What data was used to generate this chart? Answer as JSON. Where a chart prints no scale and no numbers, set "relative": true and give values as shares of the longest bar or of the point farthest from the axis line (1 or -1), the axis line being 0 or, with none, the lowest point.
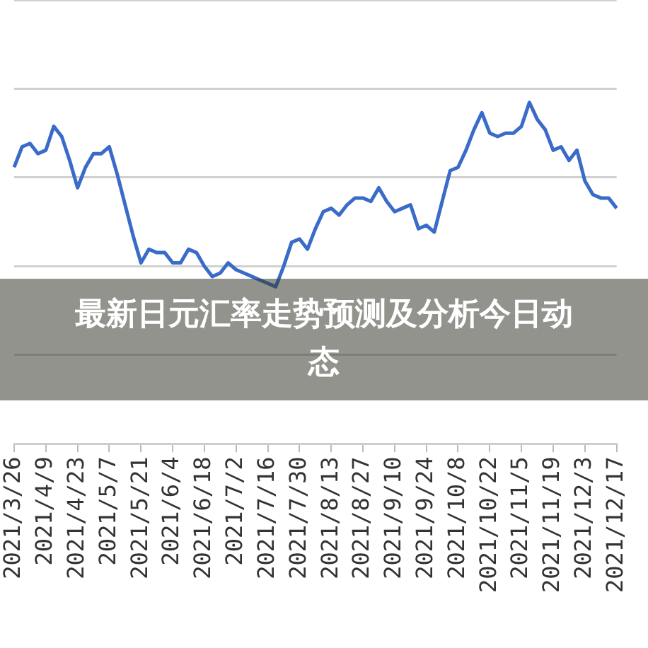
{
  "chart_data": {
    "type": "line",
    "title": "最新日元汇率走势预测及分析今日动态",
    "relative": true,
    "grid": "y",
    "legend": false,
    "marker": "none",
    "line_style": "solid",
    "categories": [
      "2021/3/26",
      null,
      null,
      null,
      "2021/4/9",
      null,
      null,
      null,
      "2021/4/23",
      null,
      null,
      null,
      "2021/5/7",
      null,
      null,
      null,
      "2021/5/21",
      null,
      null,
      null,
      "2021/6/4",
      null,
      null,
      null,
      "2021/6/18",
      null,
      null,
      null,
      "2021/7/2",
      null,
      null,
      null,
      "2021/7/16",
      null,
      null,
      null,
      "2021/7/30",
      null,
      null,
      null,
      "2021/8/13",
      null,
      null,
      null,
      "2021/8/27",
      null,
      null,
      null,
      "2021/9/10",
      null,
      null,
      null,
      "2021/9/24",
      null,
      null,
      null,
      "2021/10/8",
      null,
      null,
      null,
      "2021/10/22",
      null,
      null,
      null,
      "2021/11/5",
      null,
      null,
      null,
      "2021/11/19",
      null,
      null,
      null,
      "2021/12/3",
      null,
      null,
      null,
      "2021/12/17"
    ],
    "series": [
      {
        "color": "#3a6bc8",
        "values": [
          0.81,
          0.87,
          0.88,
          0.85,
          0.86,
          0.93,
          0.9,
          0.83,
          0.75,
          0.81,
          0.85,
          0.85,
          0.87,
          0.79,
          0.7,
          0.61,
          0.53,
          0.57,
          0.56,
          0.56,
          0.53,
          0.53,
          0.57,
          0.56,
          0.52,
          0.49,
          0.5,
          0.53,
          0.51,
          0.5,
          0.49,
          0.48,
          0.47,
          0.46,
          0.52,
          0.59,
          0.6,
          0.57,
          0.63,
          0.68,
          0.69,
          0.67,
          0.7,
          0.72,
          0.72,
          0.71,
          0.75,
          0.71,
          0.68,
          0.69,
          0.7,
          0.63,
          0.64,
          0.62,
          0.71,
          0.8,
          0.81,
          0.86,
          0.92,
          0.97,
          0.91,
          0.9,
          0.91,
          0.91,
          0.93,
          1.0,
          0.95,
          0.92,
          0.86,
          0.87,
          0.83,
          0.86,
          0.77,
          0.73,
          0.72,
          0.72,
          0.69
        ]
      }
    ]
  }
}
